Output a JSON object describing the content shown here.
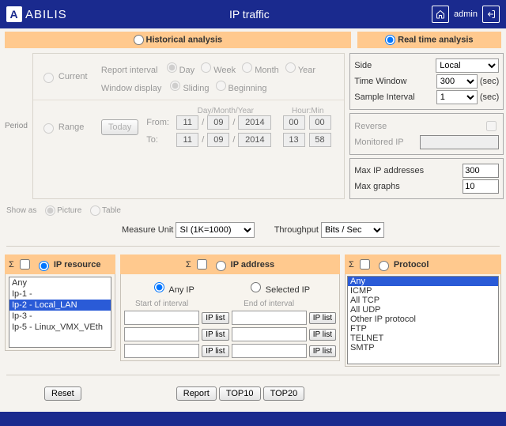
{
  "topbar": {
    "brand": "ABILIS",
    "title": "IP traffic",
    "user": "admin"
  },
  "tabs": {
    "historical": "Historical analysis",
    "realtime": "Real time analysis"
  },
  "period": {
    "label": "Period",
    "current": "Current",
    "report_interval": "Report interval",
    "ri_options": {
      "day": "Day",
      "week": "Week",
      "month": "Month",
      "year": "Year"
    },
    "window_display": "Window display",
    "wd_options": {
      "sliding": "Sliding",
      "beginning": "Beginning"
    },
    "range": "Range",
    "today_btn": "Today",
    "dmy_label": "Day/Month/Year",
    "hm_label": "Hour:Min",
    "from": "From:",
    "to": "To:",
    "from_vals": {
      "d": "11",
      "m": "09",
      "y": "2014",
      "h": "00",
      "mi": "00"
    },
    "to_vals": {
      "d": "11",
      "m": "09",
      "y": "2014",
      "h": "13",
      "mi": "58"
    }
  },
  "rt": {
    "side_l": "Side",
    "side_v": "Local",
    "tw_l": "Time Window",
    "tw_v": "300",
    "tw_u": "(sec)",
    "si_l": "Sample Interval",
    "si_v": "1",
    "si_u": "(sec)",
    "rev_l": "Reverse",
    "mip_l": "Monitored IP",
    "maxip_l": "Max IP addresses",
    "maxip_v": "300",
    "maxg_l": "Max graphs",
    "maxg_v": "10"
  },
  "show": {
    "label": "Show as",
    "picture": "Picture",
    "table": "Table"
  },
  "mid": {
    "mu_l": "Measure Unit",
    "mu_v": "SI (1K=1000)",
    "tp_l": "Throughput",
    "tp_v": "Bits / Sec"
  },
  "panels": {
    "sigma": "Σ",
    "ipres": "IP resource",
    "ipaddr": "IP address",
    "proto": "Protocol",
    "any_ip": "Any IP",
    "sel_ip": "Selected IP",
    "soi": "Start of interval",
    "eoi": "End of interval",
    "iplist": "IP list"
  },
  "ipres_items": [
    "Any",
    "Ip-1 -",
    "Ip-2 - Local_LAN",
    "Ip-3 -",
    "Ip-5 - Linux_VMX_VEth"
  ],
  "ipres_selected": 2,
  "proto_items": [
    "Any",
    "ICMP",
    "All TCP",
    "All UDP",
    "Other IP protocol",
    "FTP",
    "TELNET",
    "SMTP"
  ],
  "proto_selected": 0,
  "buttons": {
    "reset": "Reset",
    "report": "Report",
    "top10": "TOP10",
    "top20": "TOP20"
  },
  "colors": {
    "accent": "#1a2a8e",
    "tab": "#ffc98e",
    "sel": "#2a5bd7"
  }
}
